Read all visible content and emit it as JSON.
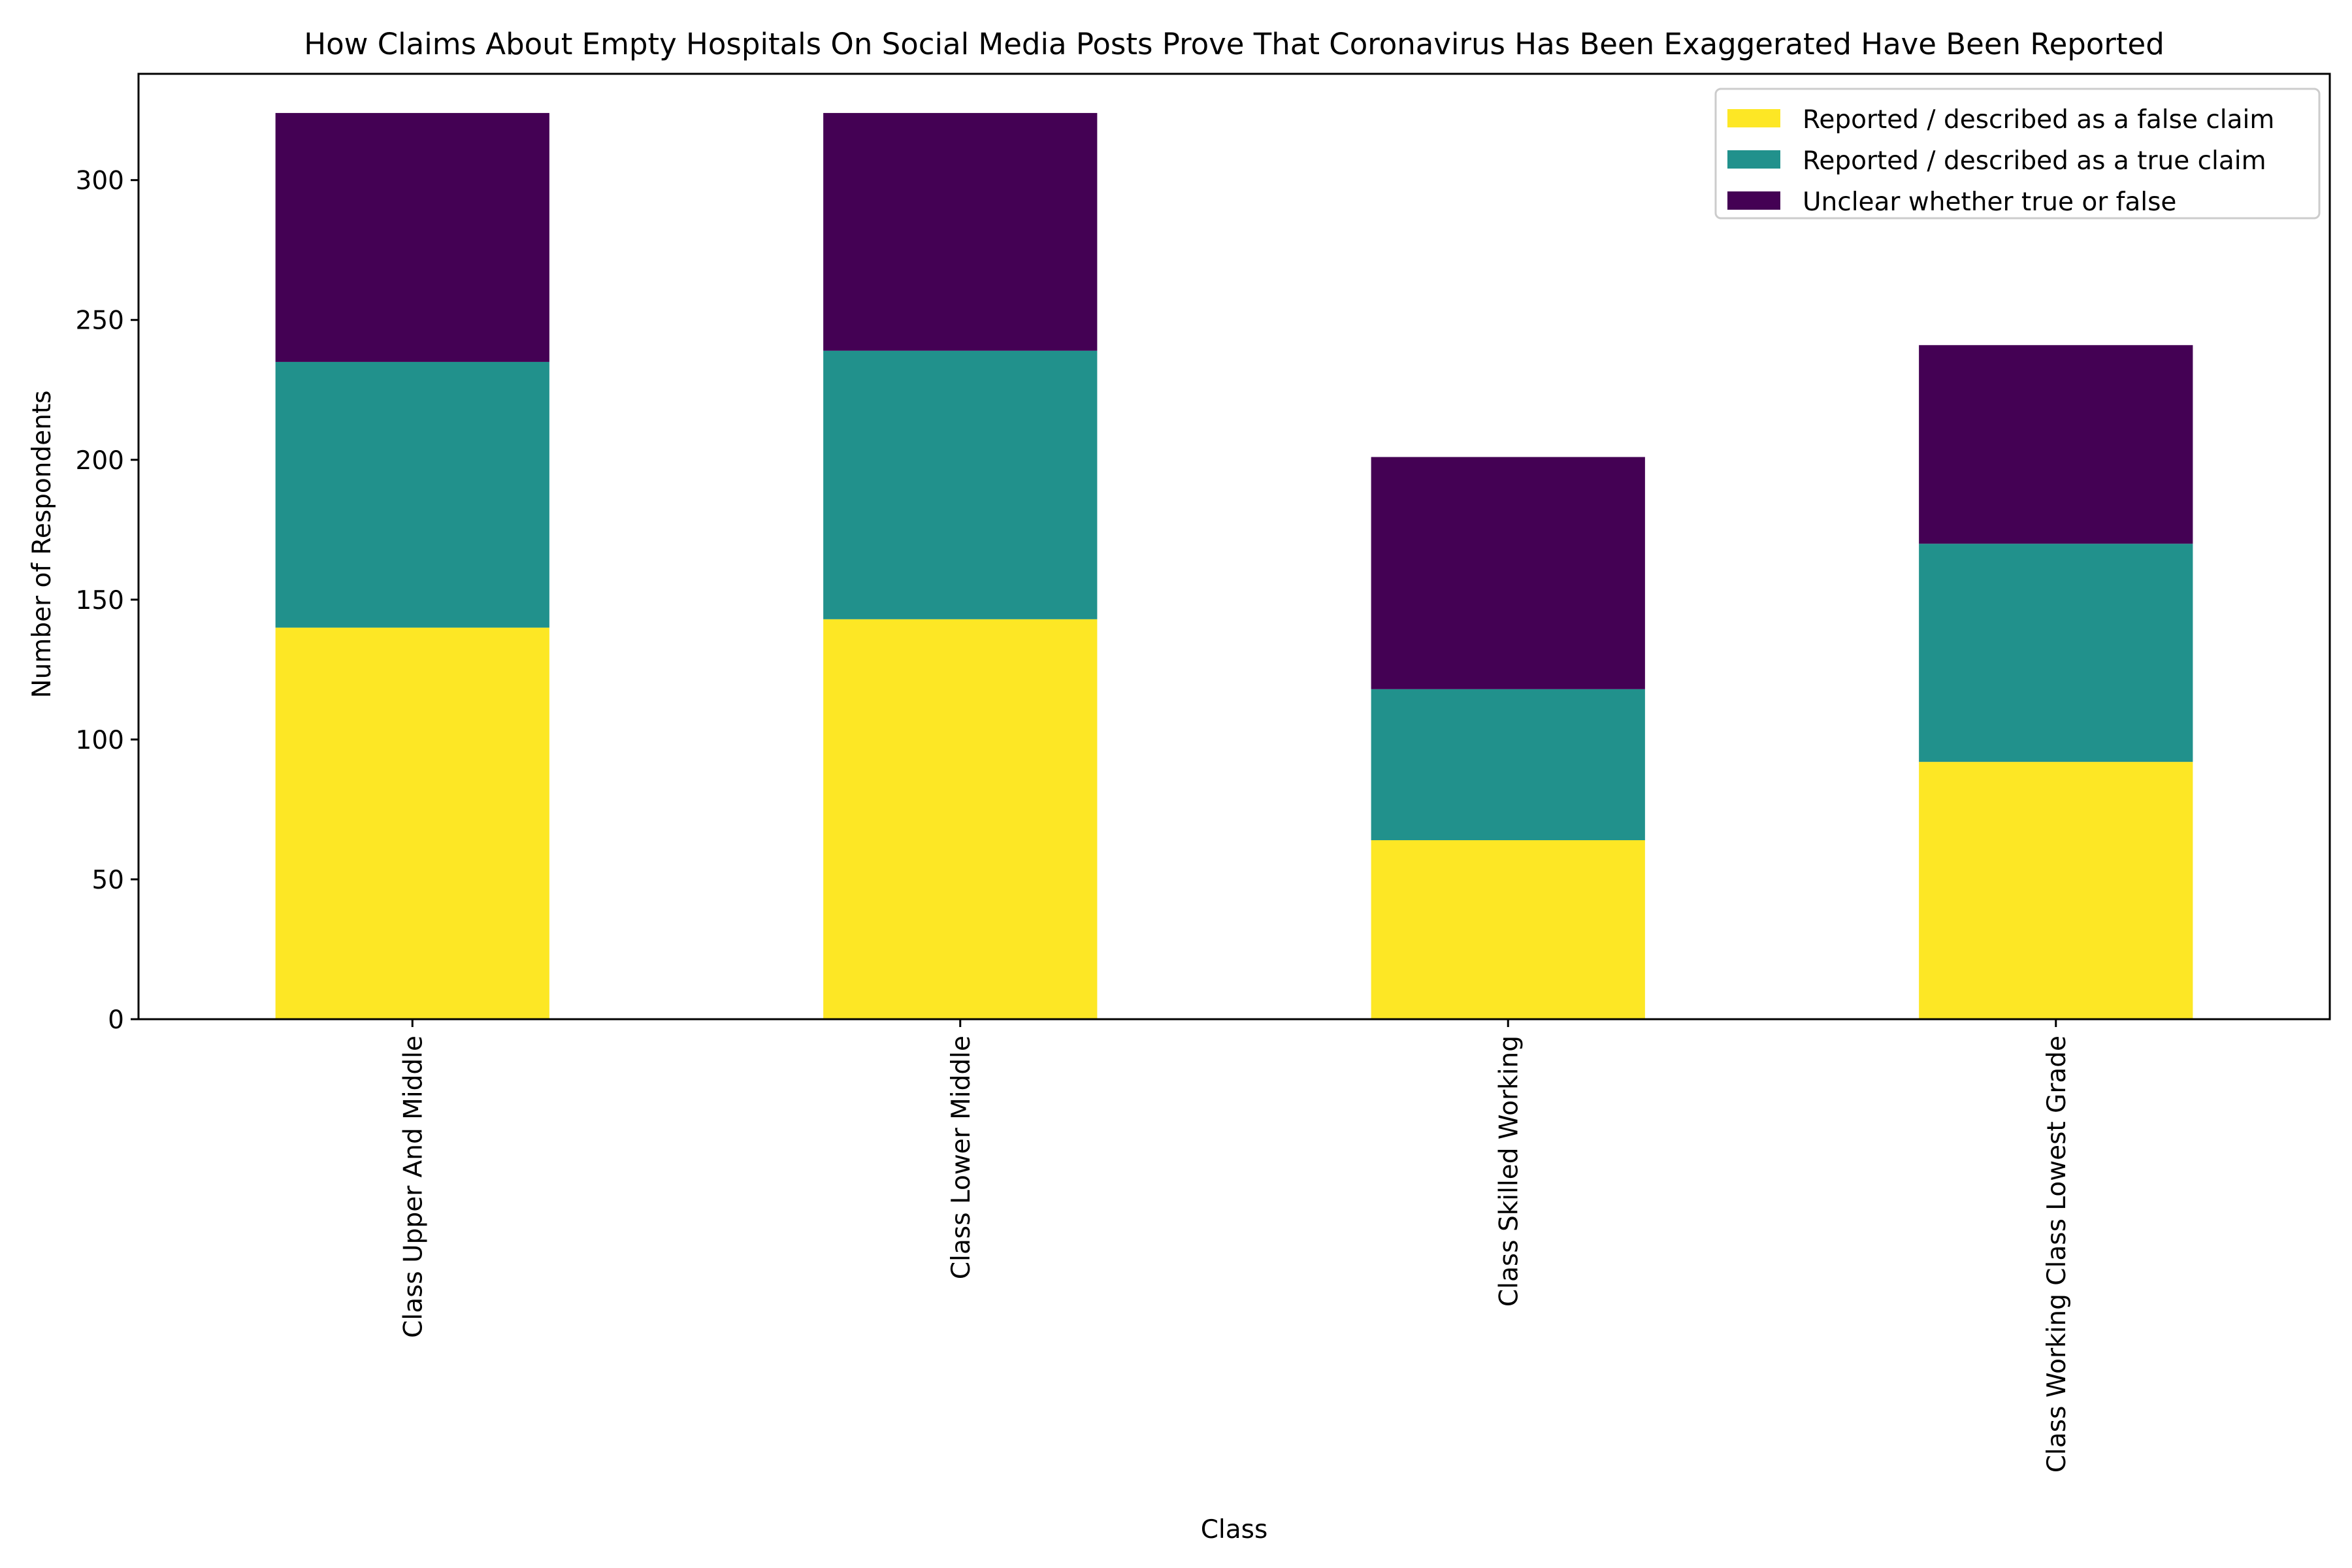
{
  "chart_data": {
    "type": "bar",
    "stacked": true,
    "title": "How Claims About Empty Hospitals On Social Media Posts Prove That Coronavirus Has Been Exaggerated Have Been Reported",
    "xlabel": "Class",
    "ylabel": "Number of Respondents",
    "categories": [
      "Class Upper And Middle",
      "Class Lower Middle",
      "Class Skilled Working",
      "Class Working Class Lowest Grade"
    ],
    "ylim": [
      0,
      338
    ],
    "yticks": [
      0,
      50,
      100,
      150,
      200,
      250,
      300
    ],
    "series": [
      {
        "name": "Reported / described as a false claim",
        "color": "#fde725",
        "values": [
          140,
          143,
          64,
          92
        ]
      },
      {
        "name": "Reported / described as a true claim",
        "color": "#21918c",
        "values": [
          95,
          96,
          54,
          78
        ]
      },
      {
        "name": "Unclear whether true or false",
        "color": "#440154",
        "values": [
          89,
          85,
          83,
          71
        ]
      }
    ],
    "grid": false,
    "legend_position": "top-right"
  }
}
